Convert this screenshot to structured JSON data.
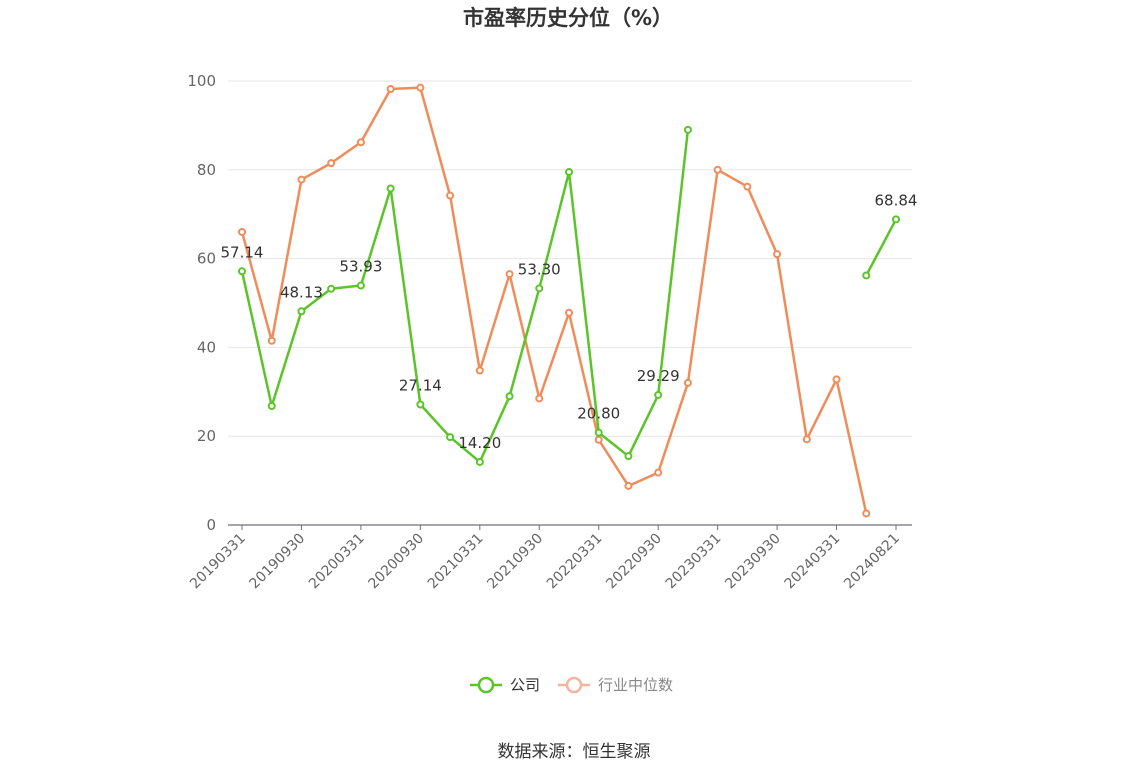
{
  "chart_data": {
    "type": "line",
    "title": "市盈率历史分位（%）",
    "x": [
      "20190331",
      "20190630",
      "20190930",
      "20191231",
      "20200331",
      "20200630",
      "20200930",
      "20201231",
      "20210331",
      "20210630",
      "20210930",
      "20211231",
      "20220331",
      "20220630",
      "20220930",
      "20221231",
      "20230331",
      "20230630",
      "20230930",
      "20231231",
      "20240331",
      "20240630",
      "20240821"
    ],
    "x_tick_labels": [
      "20190331",
      "20190930",
      "20200331",
      "20200930",
      "20210331",
      "20210930",
      "20220331",
      "20220930",
      "20230331",
      "20230930",
      "20240331",
      "20240821"
    ],
    "ylim": [
      0,
      100
    ],
    "yticks": [
      0,
      20,
      40,
      60,
      80,
      100
    ],
    "grid": true,
    "legend_position": "bottom",
    "series": [
      {
        "name": "公司",
        "color": "#5ac429",
        "values": [
          57.14,
          26.8,
          48.13,
          53.2,
          53.93,
          75.8,
          27.14,
          19.8,
          14.2,
          29.0,
          53.3,
          79.5,
          20.8,
          15.5,
          29.29,
          89.0,
          null,
          null,
          null,
          null,
          null,
          56.2,
          68.84
        ],
        "data_labels": [
          {
            "index": 0,
            "text": "57.14"
          },
          {
            "index": 2,
            "text": "48.13"
          },
          {
            "index": 4,
            "text": "53.93"
          },
          {
            "index": 6,
            "text": "27.14"
          },
          {
            "index": 8,
            "text": "14.20"
          },
          {
            "index": 10,
            "text": "53.30"
          },
          {
            "index": 12,
            "text": "20.80"
          },
          {
            "index": 14,
            "text": "29.29"
          },
          {
            "index": 22,
            "text": "68.84"
          }
        ]
      },
      {
        "name": "行业中位数",
        "color": "#f08c5a",
        "values": [
          66.0,
          41.5,
          77.8,
          81.5,
          86.2,
          98.2,
          98.5,
          74.2,
          34.8,
          56.5,
          28.5,
          47.8,
          19.2,
          8.8,
          11.8,
          32.0,
          80.0,
          76.2,
          61.0,
          19.3,
          32.8,
          2.6,
          null
        ]
      }
    ],
    "legend_colors": {
      "公司": "#5ac429",
      "行业中位数": "#f5b49b"
    }
  },
  "footer": {
    "source_text": "数据来源：恒生聚源"
  }
}
